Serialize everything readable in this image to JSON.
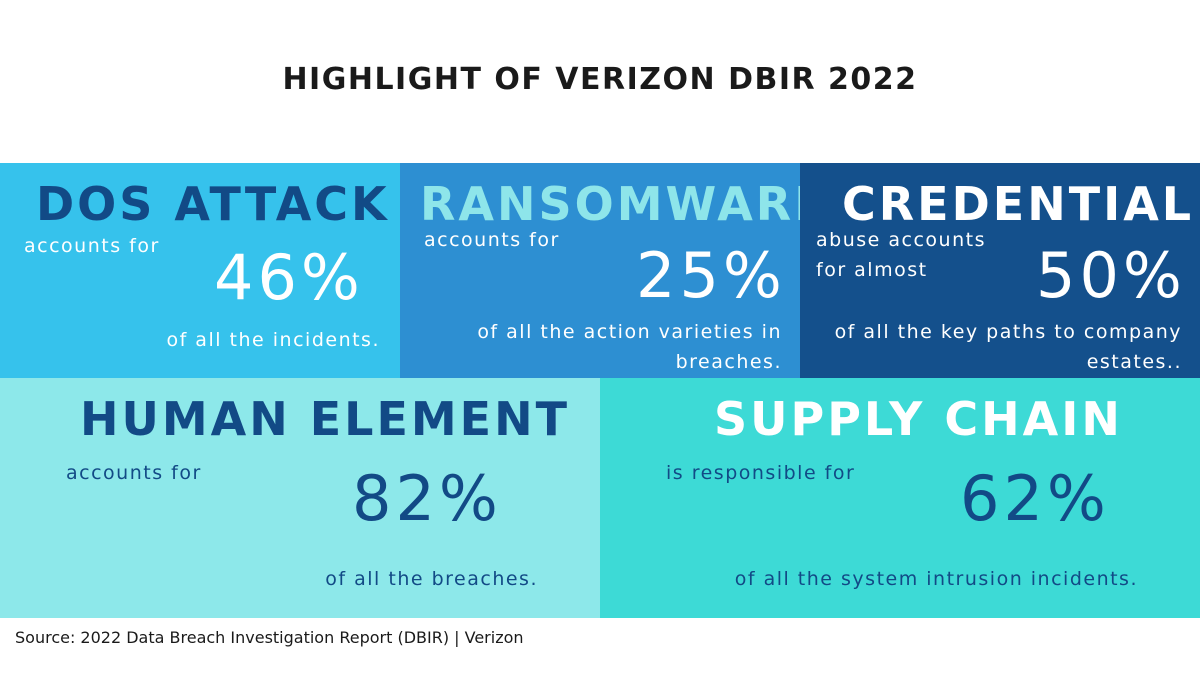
{
  "title": "HIGHLIGHT OF VERIZON DBIR 2022",
  "panels": {
    "dos": {
      "heading": "DOS ATTACK",
      "prefix": "accounts for",
      "percent": "46%",
      "suffix": "of all the incidents."
    },
    "ransomware": {
      "heading": "RANSOMWARE",
      "prefix": "accounts for",
      "percent": "25%",
      "suffix": "of all the action varieties in breaches."
    },
    "credential": {
      "heading": "CREDENTIAL",
      "prefix": "abuse accounts for almost",
      "percent": "50%",
      "suffix": "of all the key paths to company estates.."
    },
    "human": {
      "heading": "HUMAN ELEMENT",
      "prefix": "accounts for",
      "percent": "82%",
      "suffix": "of all the breaches."
    },
    "supply": {
      "heading": "SUPPLY CHAIN",
      "prefix": "is responsible for",
      "percent": "62%",
      "suffix": "of all the system intrusion incidents."
    }
  },
  "source": "Source: 2022 Data Breach Investigation Report (DBIR) | Verizon",
  "colors": {
    "dos_bg": "#36c2ec",
    "ransomware_bg": "#2d8fd2",
    "credential_bg": "#14508c",
    "human_bg": "#8de8ea",
    "supply_bg": "#3ddad6",
    "navy": "#124a86",
    "aqua": "#8ee5ea"
  }
}
